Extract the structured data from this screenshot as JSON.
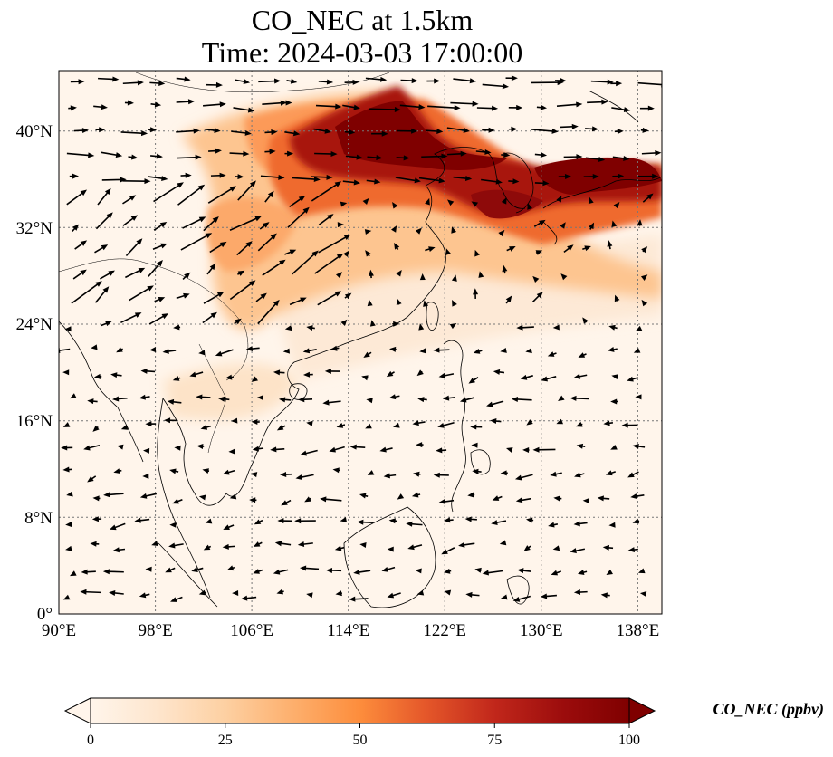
{
  "title": {
    "line1": "CO_NEC at 1.5km",
    "line2": "Time: 2024-03-03 17:00:00"
  },
  "map": {
    "projection": "PlateCarree",
    "lon_range": [
      90,
      140
    ],
    "lat_range": [
      0,
      45
    ],
    "gridlines": "dotted",
    "lon_ticks": [
      {
        "value": 90,
        "label": "90°E"
      },
      {
        "value": 98,
        "label": "98°E"
      },
      {
        "value": 106,
        "label": "106°E"
      },
      {
        "value": 114,
        "label": "114°E"
      },
      {
        "value": 122,
        "label": "122°E"
      },
      {
        "value": 130,
        "label": "130°E"
      },
      {
        "value": 138,
        "label": "138°E"
      }
    ],
    "lat_ticks": [
      {
        "value": 0,
        "label": "0°"
      },
      {
        "value": 8,
        "label": "8°N"
      },
      {
        "value": 16,
        "label": "16°N"
      },
      {
        "value": 24,
        "label": "24°N"
      },
      {
        "value": 32,
        "label": "32°N"
      },
      {
        "value": 40,
        "label": "40°N"
      }
    ],
    "field_colors": [
      "#fff5eb",
      "#fdd49e",
      "#fdae6b",
      "#f16913",
      "#d94801",
      "#a50f15",
      "#7f0000"
    ],
    "wind_vectors": "black quiver arrows"
  },
  "colorbar": {
    "label": "CO_NEC (ppbv)",
    "range": [
      0,
      100
    ],
    "extend": "both",
    "ticks": [
      {
        "value": 0,
        "label": "0"
      },
      {
        "value": 25,
        "label": "25"
      },
      {
        "value": 50,
        "label": "50"
      },
      {
        "value": 75,
        "label": "75"
      },
      {
        "value": 100,
        "label": "100"
      }
    ],
    "colormap": [
      "#fff5eb",
      "#fee6ce",
      "#fdd0a2",
      "#fdae6b",
      "#fd8d3c",
      "#e5582a",
      "#c1271b",
      "#9b0c0c",
      "#7f0000"
    ]
  }
}
